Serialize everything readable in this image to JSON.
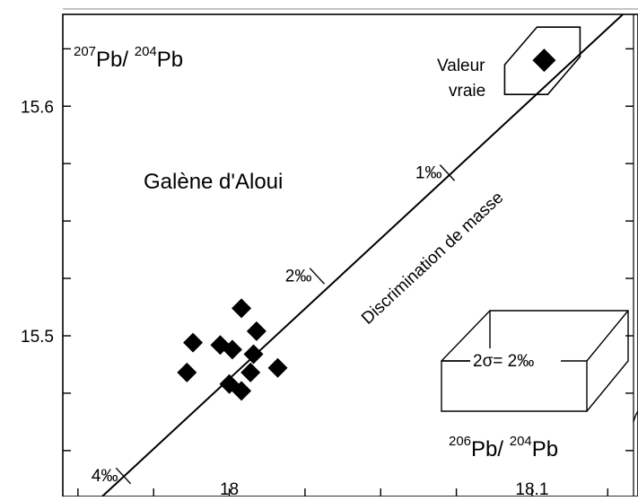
{
  "chart_data": {
    "type": "scatter",
    "title": "",
    "x_axis": {
      "label_sup1": "206",
      "label_base1": "Pb/ ",
      "label_sup2": "204",
      "label_base2": "Pb",
      "range": [
        17.945,
        18.135
      ],
      "ticks": [
        17.95,
        17.975,
        18.0,
        18.025,
        18.05,
        18.075,
        18.1,
        18.125
      ],
      "tick_labels": [
        {
          "value": 18.0,
          "text": "18"
        },
        {
          "value": 18.1,
          "text": "18.1"
        }
      ]
    },
    "y_axis": {
      "label_sup1": "207",
      "label_base1": "Pb/ ",
      "label_sup2": "204",
      "label_base2": "Pb",
      "range": [
        15.43,
        15.64
      ],
      "ticks": [
        15.45,
        15.475,
        15.5,
        15.525,
        15.55,
        15.575,
        15.6,
        15.625
      ],
      "tick_labels": [
        {
          "value": 15.5,
          "text": "15.5"
        },
        {
          "value": 15.6,
          "text": "15.6"
        }
      ]
    },
    "points": [
      {
        "x": 17.986,
        "y": 15.484
      },
      {
        "x": 17.988,
        "y": 15.497
      },
      {
        "x": 17.997,
        "y": 15.496
      },
      {
        "x": 18.0,
        "y": 15.479
      },
      {
        "x": 18.001,
        "y": 15.494
      },
      {
        "x": 18.004,
        "y": 15.512
      },
      {
        "x": 18.004,
        "y": 15.476
      },
      {
        "x": 18.007,
        "y": 15.484
      },
      {
        "x": 18.008,
        "y": 15.492
      },
      {
        "x": 18.009,
        "y": 15.502
      },
      {
        "x": 18.016,
        "y": 15.486
      }
    ],
    "true_value": {
      "x": 18.104,
      "y": 15.62
    },
    "discrimination_line": {
      "x1": 17.958,
      "y1": 15.43,
      "x2": 18.13,
      "y2": 15.64
    },
    "line_label": "Discrimination de masse",
    "line_marks": [
      {
        "text": "1‰",
        "x": 18.072,
        "y": 15.571
      },
      {
        "text": "2‰",
        "x": 18.029,
        "y": 15.526
      },
      {
        "text": "4‰",
        "x": 17.965,
        "y": 15.439
      }
    ],
    "annotations": {
      "sample_name": "Galène d'Aloui",
      "true_value_line1": "Valeur",
      "true_value_line2": "vraie",
      "error_box_label": "2σ= 2‰"
    },
    "grid": false,
    "legend": "none"
  }
}
